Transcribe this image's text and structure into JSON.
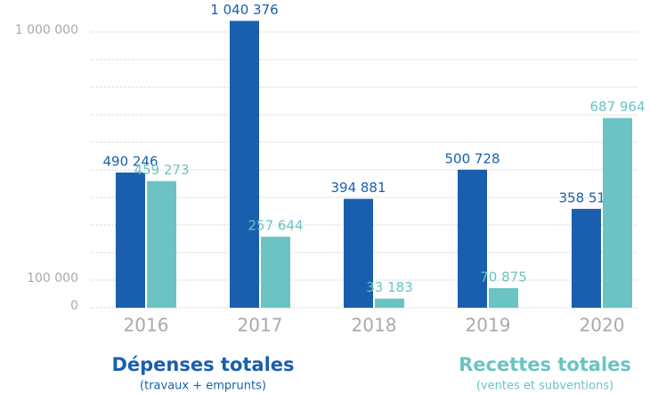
{
  "chart_data": {
    "type": "bar",
    "categories": [
      "2016",
      "2017",
      "2018",
      "2019",
      "2020"
    ],
    "series": [
      {
        "name": "Dépenses totales",
        "note": "(travaux + emprunts)",
        "color": "#1a5fae",
        "values": [
          490246,
          1040376,
          394881,
          500728,
          358515
        ],
        "value_labels": [
          "490 246",
          "1 040 376",
          "394 881",
          "500 728",
          "358 515"
        ]
      },
      {
        "name": "Recettes totales",
        "note": "(ventes et subventions)",
        "color": "#6cc3c3",
        "values": [
          459273,
          257644,
          33183,
          70875,
          687964
        ],
        "value_labels": [
          "459 273",
          "257 644",
          "33 183",
          "70 875",
          "687 964"
        ]
      }
    ],
    "ylim": [
      0,
      1000000
    ],
    "yticks": [
      0,
      {
        "value": 100000,
        "label": "100 000"
      },
      {
        "value": 1000000,
        "label": "1 000 000"
      }
    ],
    "minor_yticks": [
      200000,
      300000,
      400000,
      500000,
      600000,
      700000,
      800000,
      900000
    ],
    "grid": true
  }
}
